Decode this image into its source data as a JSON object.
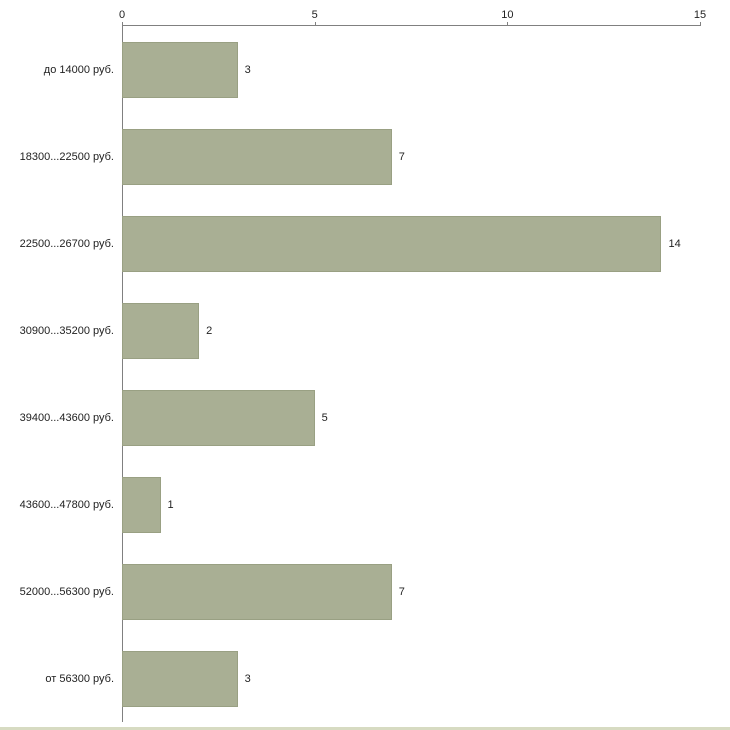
{
  "chart_data": {
    "type": "bar",
    "orientation": "horizontal",
    "title": "",
    "xlabel": "",
    "ylabel": "",
    "categories": [
      "до 14000 руб.",
      "18300...22500 руб.",
      "22500...26700 руб.",
      "30900...35200 руб.",
      "39400...43600 руб.",
      "43600...47800 руб.",
      "52000...56300 руб.",
      "от 56300 руб."
    ],
    "values": [
      3,
      7,
      14,
      2,
      5,
      1,
      7,
      3
    ],
    "xlim": [
      0,
      15
    ],
    "xticks": [
      0,
      5,
      10,
      15
    ],
    "grid": false,
    "legend": "none",
    "value_labels": true,
    "colors": {
      "bar_fill": "#a9af94",
      "bar_border": "#99a083",
      "axis": "#808080",
      "text": "#222222",
      "background": "#ffffff",
      "footer_strip": "#d7dbc2"
    }
  }
}
